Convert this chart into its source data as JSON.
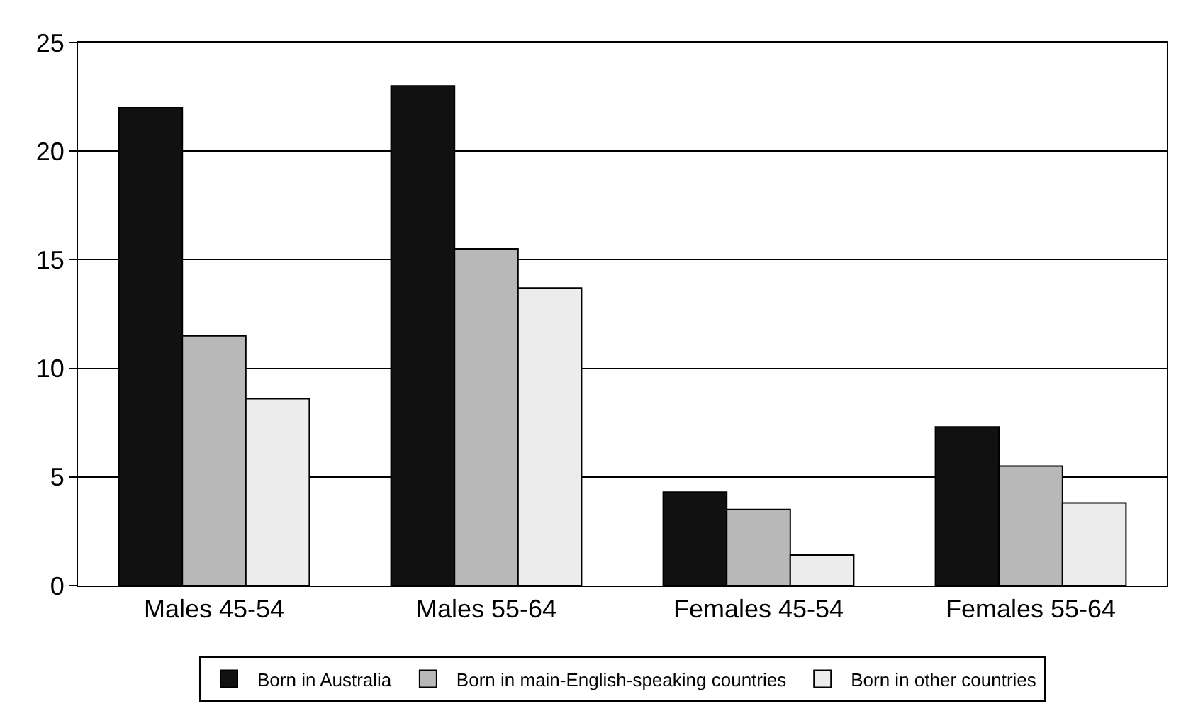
{
  "chart_data": {
    "type": "bar",
    "categories": [
      "Males 45-54",
      "Males 55-64",
      "Females 45-54",
      "Females 55-64"
    ],
    "series": [
      {
        "name": "Born in Australia",
        "color": "#111111",
        "values": [
          22.0,
          23.0,
          4.3,
          7.3
        ]
      },
      {
        "name": "Born in main-English-speaking countries",
        "color": "#b8b8b8",
        "values": [
          11.5,
          15.5,
          3.5,
          5.5
        ]
      },
      {
        "name": "Born in other countries",
        "color": "#ececec",
        "values": [
          8.6,
          13.7,
          1.4,
          3.8
        ]
      }
    ],
    "ylim": [
      0,
      25
    ],
    "yticks": [
      0,
      5,
      10,
      15,
      20,
      25
    ],
    "grid": "y",
    "legend": "bottom"
  }
}
